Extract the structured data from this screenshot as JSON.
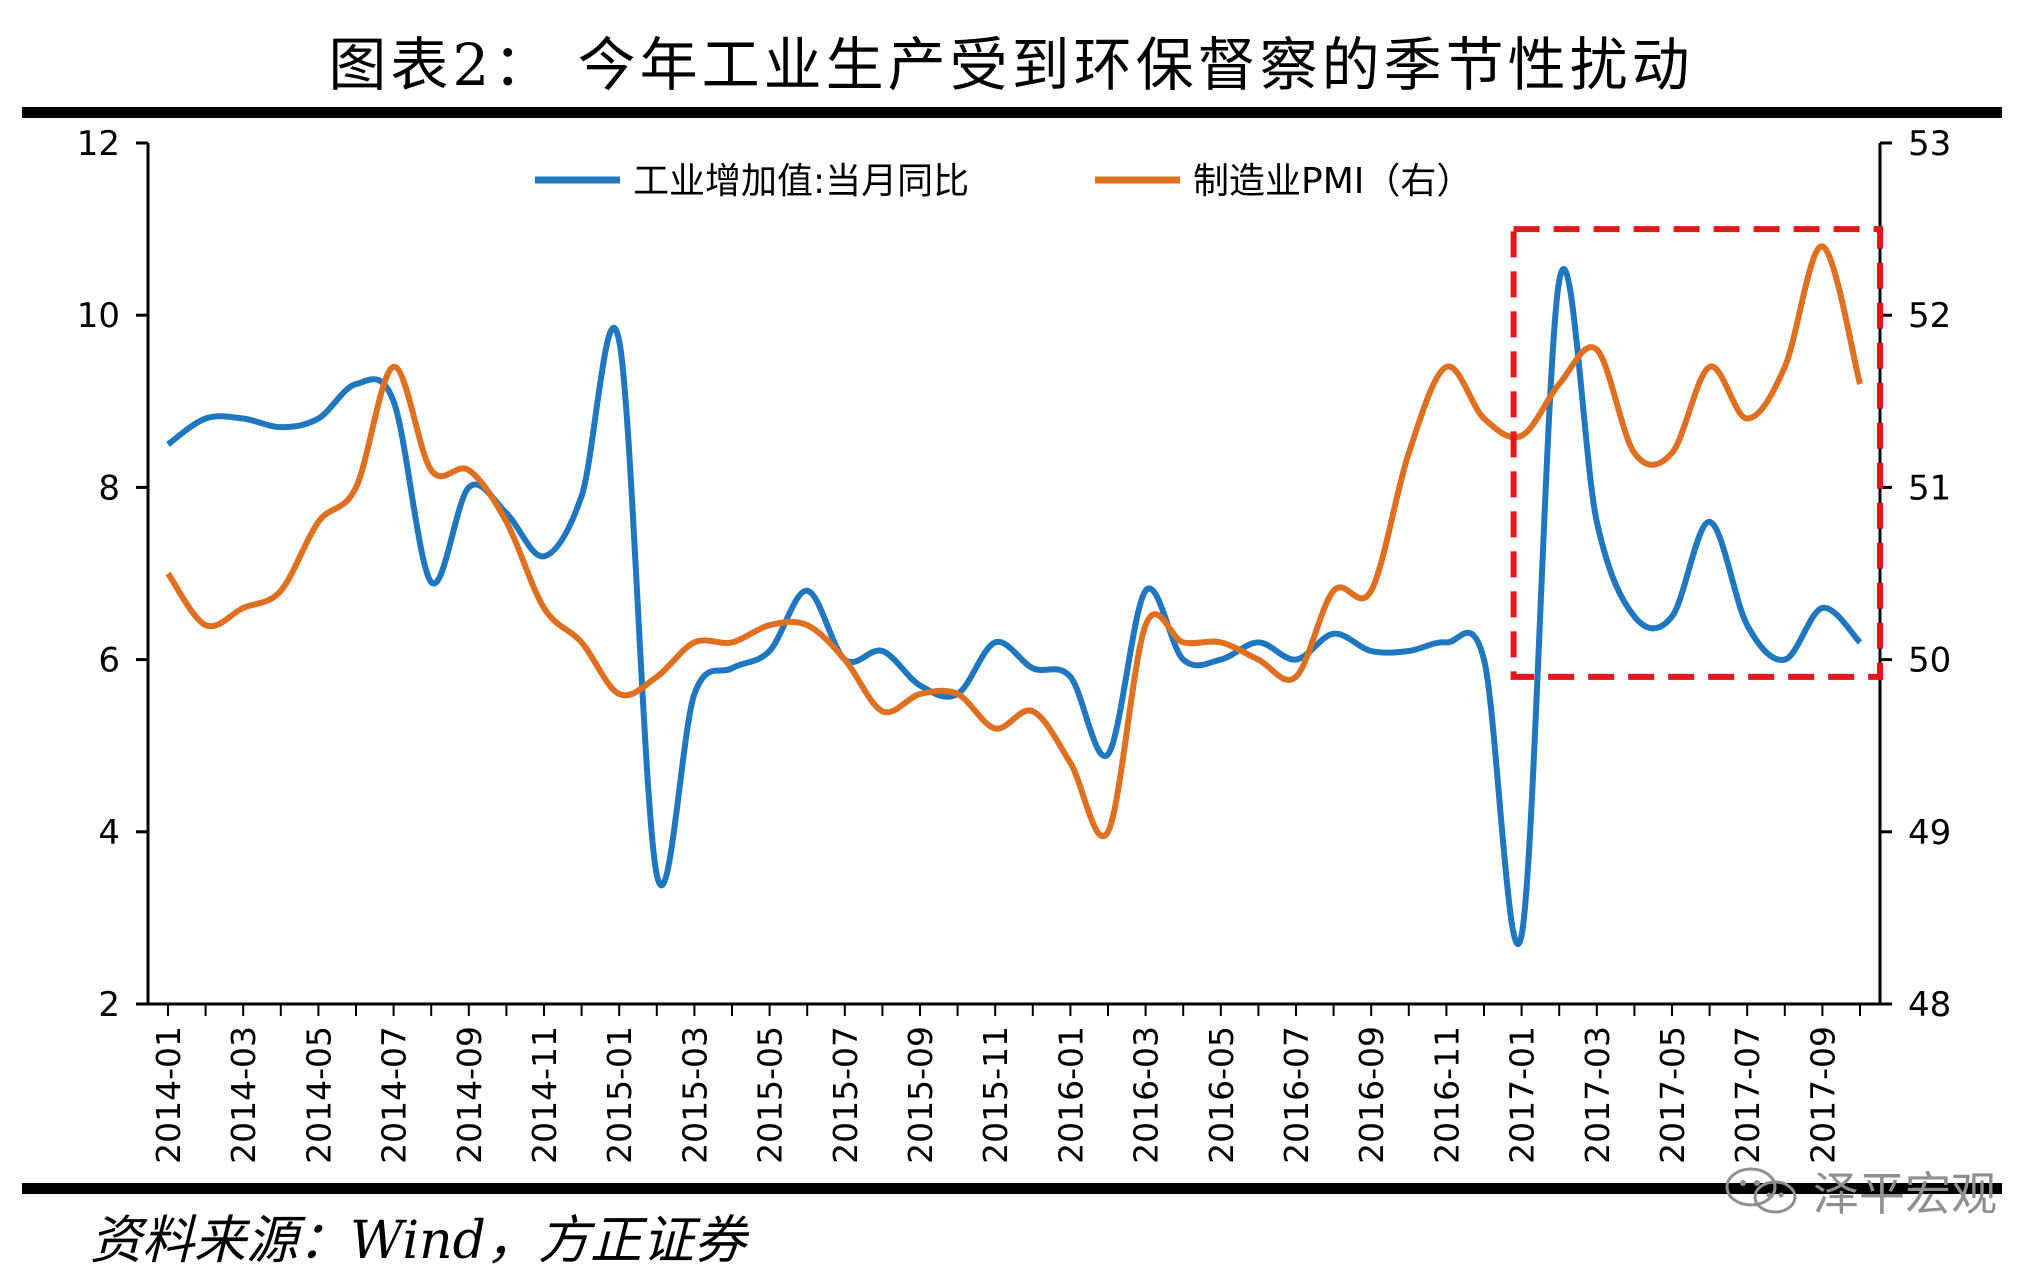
{
  "title": "图表2： 今年工业生产受到环保督察的季节性扰动",
  "source": "资料来源：Wind，方正证券",
  "watermark": "泽平宏观",
  "icons": {
    "watermark_icon": "wechat-icon"
  },
  "chart_data": {
    "type": "line",
    "categories": [
      "2014-01",
      "2014-02",
      "2014-03",
      "2014-04",
      "2014-05",
      "2014-06",
      "2014-07",
      "2014-08",
      "2014-09",
      "2014-10",
      "2014-11",
      "2014-12",
      "2015-01",
      "2015-02",
      "2015-03",
      "2015-04",
      "2015-05",
      "2015-06",
      "2015-07",
      "2015-08",
      "2015-09",
      "2015-10",
      "2015-11",
      "2015-12",
      "2016-01",
      "2016-02",
      "2016-03",
      "2016-04",
      "2016-05",
      "2016-06",
      "2016-07",
      "2016-08",
      "2016-09",
      "2016-10",
      "2016-11",
      "2016-12",
      "2017-01",
      "2017-02",
      "2017-03",
      "2017-04",
      "2017-05",
      "2017-06",
      "2017-07",
      "2017-08",
      "2017-09",
      "2017-10"
    ],
    "x_tick_labels": [
      "2014-01",
      "2014-03",
      "2014-05",
      "2014-07",
      "2014-09",
      "2014-11",
      "2015-01",
      "2015-03",
      "2015-05",
      "2015-07",
      "2015-09",
      "2015-11",
      "2016-01",
      "2016-03",
      "2016-05",
      "2016-07",
      "2016-09",
      "2016-11",
      "2017-01",
      "2017-03",
      "2017-05",
      "2017-07",
      "2017-09"
    ],
    "series": [
      {
        "name": "工业增加值:当月同比",
        "axis": "left",
        "color": "#1f77c2",
        "values": [
          8.5,
          8.8,
          8.8,
          8.7,
          8.8,
          9.2,
          9.0,
          6.9,
          8.0,
          7.7,
          7.2,
          7.9,
          9.7,
          3.5,
          5.6,
          5.9,
          6.1,
          6.8,
          6.0,
          6.1,
          5.7,
          5.6,
          6.2,
          5.9,
          5.8,
          4.9,
          6.8,
          6.0,
          6.0,
          6.2,
          6.0,
          6.3,
          6.1,
          6.1,
          6.2,
          6.0,
          2.8,
          10.4,
          7.6,
          6.5,
          6.5,
          7.6,
          6.4,
          6.0,
          6.6,
          6.2
        ]
      },
      {
        "name": "制造业PMI（右）",
        "axis": "right",
        "color": "#e07020",
        "values": [
          50.5,
          50.2,
          50.3,
          50.4,
          50.8,
          51.0,
          51.7,
          51.1,
          51.1,
          50.8,
          50.3,
          50.1,
          49.8,
          49.9,
          50.1,
          50.1,
          50.2,
          50.2,
          50.0,
          49.7,
          49.8,
          49.8,
          49.6,
          49.7,
          49.4,
          49.0,
          50.2,
          50.1,
          50.1,
          50.0,
          49.9,
          50.4,
          50.4,
          51.2,
          51.7,
          51.4,
          51.3,
          51.6,
          51.8,
          51.2,
          51.2,
          51.7,
          51.4,
          51.7,
          52.4,
          51.6
        ]
      }
    ],
    "y_left": {
      "min": 2,
      "max": 12,
      "ticks": [
        2,
        4,
        6,
        8,
        10,
        12
      ]
    },
    "y_right": {
      "min": 48,
      "max": 53,
      "ticks": [
        48,
        49,
        50,
        51,
        52,
        53
      ]
    },
    "legend_position": "top",
    "grid": false,
    "annotation": {
      "type": "dashed-box",
      "color": "#e8141b",
      "from": "2017-01",
      "to": "2017-10"
    }
  }
}
